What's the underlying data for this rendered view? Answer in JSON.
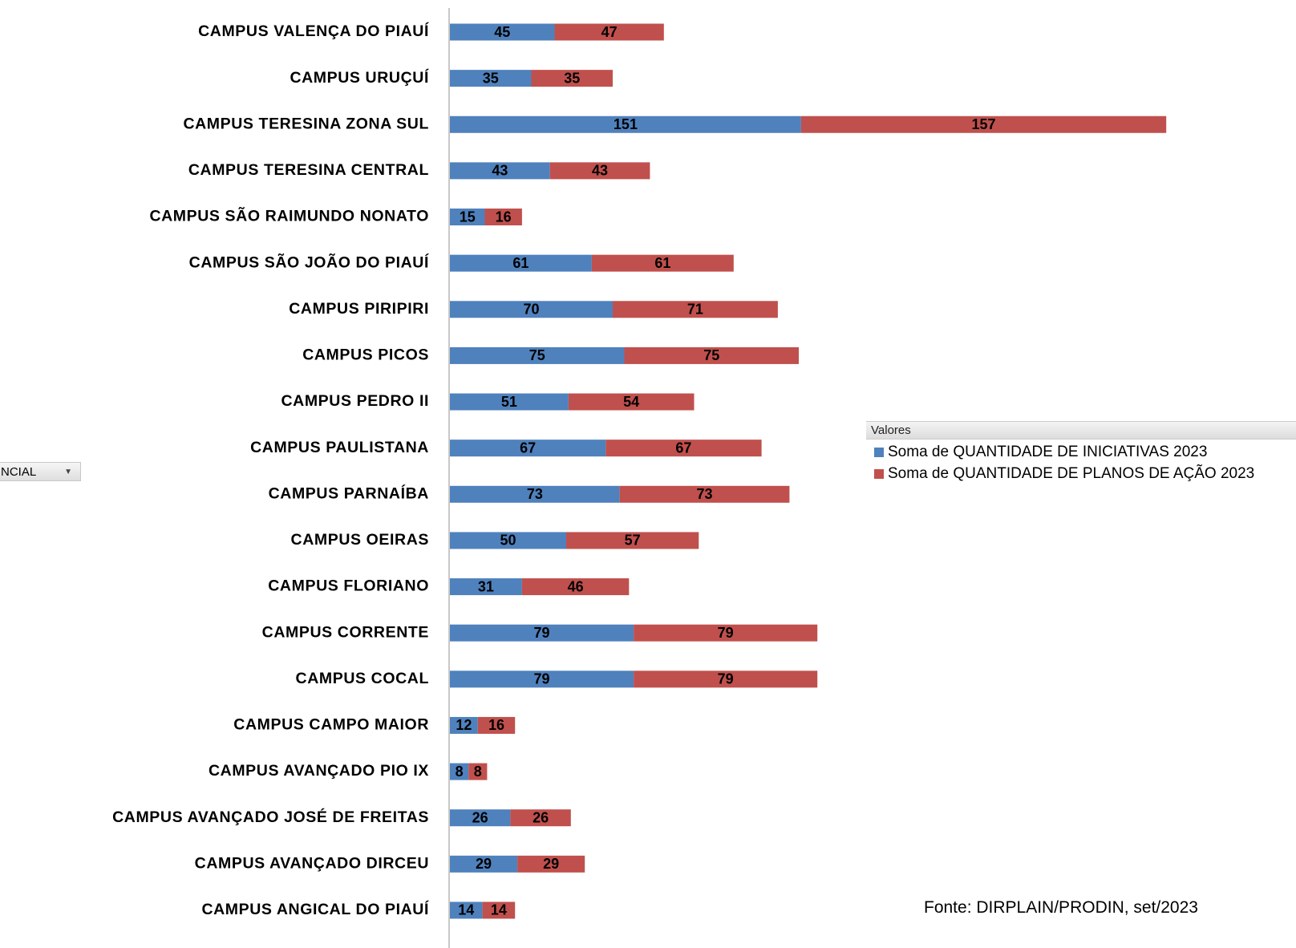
{
  "filter_label": "NCIAL",
  "chart_data": {
    "type": "stacked-barh",
    "legend_title": "Valores",
    "source": "Fonte: DIRPLAIN/PRODIN, set/2023",
    "categories": [
      "CAMPUS VALENÇA DO PIAUÍ",
      "CAMPUS URUÇUÍ",
      "CAMPUS TERESINA ZONA SUL",
      "CAMPUS TERESINA CENTRAL",
      "CAMPUS SÃO RAIMUNDO NONATO",
      "CAMPUS SÃO JOÃO DO PIAUÍ",
      "CAMPUS PIRIPIRI",
      "CAMPUS PICOS",
      "CAMPUS PEDRO II",
      "CAMPUS PAULISTANA",
      "CAMPUS PARNAÍBA",
      "CAMPUS OEIRAS",
      "CAMPUS FLORIANO",
      "CAMPUS CORRENTE",
      "CAMPUS COCAL",
      "CAMPUS CAMPO MAIOR",
      "CAMPUS AVANÇADO PIO IX",
      "CAMPUS AVANÇADO JOSÉ DE FREITAS",
      "CAMPUS AVANÇADO DIRCEU",
      "CAMPUS ANGICAL DO PIAUÍ"
    ],
    "series": [
      {
        "name": "Soma de QUANTIDADE DE INICIATIVAS 2023",
        "color": "#4f81bd",
        "values": [
          45,
          35,
          151,
          43,
          15,
          61,
          70,
          75,
          51,
          67,
          73,
          50,
          31,
          79,
          79,
          12,
          8,
          26,
          29,
          14
        ]
      },
      {
        "name": "Soma de QUANTIDADE DE PLANOS DE AÇÃO 2023",
        "color": "#c0504d",
        "values": [
          47,
          35,
          157,
          43,
          16,
          61,
          71,
          75,
          54,
          67,
          73,
          57,
          46,
          79,
          79,
          16,
          8,
          26,
          29,
          14
        ]
      }
    ],
    "xlim": [
      0,
      310
    ]
  }
}
